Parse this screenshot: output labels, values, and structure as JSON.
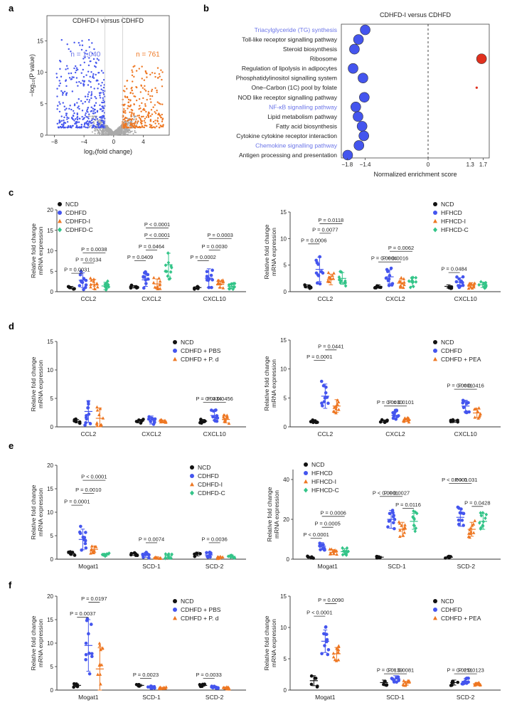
{
  "colors": {
    "ncd": "#111111",
    "blue": "#4455ee",
    "orange": "#ee7722",
    "green": "#33c488",
    "label_blue": "#6a74e8",
    "red": "#e0301e",
    "grey": "#aaaaaa"
  },
  "chart_data": [
    {
      "id": "a",
      "panel": "a",
      "type": "scatter",
      "title": "CDHFD-I versus CDHFD",
      "xlabel": "log₂(fold change)",
      "ylabel": "−log₁₀(P value)",
      "xticks": [
        "−8",
        "−4",
        "0",
        "4"
      ],
      "yticks": [
        "0",
        "5",
        "10",
        "15"
      ],
      "xlim": [
        -9,
        7.5
      ],
      "ylim": [
        0,
        19
      ],
      "annotations": [
        "n = 1,040",
        "n = 761"
      ],
      "series": [
        {
          "color": "blue",
          "count": 1040,
          "description": "down-regulated genes"
        },
        {
          "color": "orange",
          "count": 761,
          "description": "up-regulated genes"
        }
      ]
    },
    {
      "id": "b",
      "panel": "b",
      "type": "scatter",
      "title": "CDHFD-I versus CDHFD",
      "xlabel": "Normalized enrichment score",
      "xticks": [
        "−1.8",
        "−1.4",
        "0",
        "1.3",
        "1.7"
      ],
      "pathways": [
        {
          "name": "Triacylglyceride (TG) synthesis",
          "nes": -1.4,
          "color": "blue",
          "highlight": true
        },
        {
          "name": "Toll-like receptor signalling pathway",
          "nes": -1.55,
          "color": "blue",
          "highlight": false
        },
        {
          "name": "Steroid biosynthesis",
          "nes": -1.64,
          "color": "blue",
          "highlight": false
        },
        {
          "name": "Ribosome",
          "nes": 1.65,
          "color": "red",
          "highlight": false
        },
        {
          "name": "Regulation of lipolysis in adipocytes",
          "nes": -1.67,
          "color": "blue",
          "highlight": false
        },
        {
          "name": "Phosphatidylinositol signalling system",
          "nes": -1.45,
          "color": "blue",
          "highlight": false
        },
        {
          "name": "One–Carbon (1C) pool by folate",
          "nes": 1.5,
          "color": "red",
          "highlight": false
        },
        {
          "name": "NOD like receptor signalling pathway",
          "nes": -1.42,
          "color": "blue",
          "highlight": false
        },
        {
          "name": "NF-κB signalling pathway",
          "nes": -1.61,
          "color": "blue",
          "highlight": true
        },
        {
          "name": "Lipid metabolism pathway",
          "nes": -1.56,
          "color": "blue",
          "highlight": false
        },
        {
          "name": "Fatty acid biosynthesis",
          "nes": -1.47,
          "color": "blue",
          "highlight": false
        },
        {
          "name": "Cytokine cytokine receptor interaction",
          "nes": -1.43,
          "color": "blue",
          "highlight": false
        },
        {
          "name": "Chemokine signalling pathway",
          "nes": -1.54,
          "color": "blue",
          "highlight": true
        },
        {
          "name": "Antigen processing and presentation",
          "nes": -1.79,
          "color": "blue",
          "highlight": false
        }
      ]
    },
    {
      "id": "c1",
      "panel": "c",
      "type": "scatter",
      "ylabel": "Relative fold change\nmRNA expression",
      "ylim": [
        0,
        20
      ],
      "yticks": [
        0,
        5,
        10,
        15,
        20
      ],
      "categories": [
        "CCL2",
        "CXCL2",
        "CXCL10"
      ],
      "legend": [
        {
          "label": "NCD",
          "color": "ncd",
          "marker": "circle"
        },
        {
          "label": "CDHFD",
          "color": "blue",
          "marker": "circle"
        },
        {
          "label": "CDHFD-I",
          "color": "orange",
          "marker": "triangle"
        },
        {
          "label": "CDHFD-C",
          "color": "green",
          "marker": "diamond"
        }
      ],
      "groups": [
        [
          1,
          2.8,
          1.8,
          1.4
        ],
        [
          1.2,
          2.9,
          1.9,
          6.6
        ],
        [
          1,
          3.3,
          1.8,
          1.3
        ]
      ],
      "errors": [
        [
          0.3,
          1.8,
          1.2,
          0.9
        ],
        [
          0.3,
          1.6,
          1.2,
          2.8
        ],
        [
          0.3,
          2.3,
          0.8,
          0.6
        ]
      ],
      "comparisons": [
        {
          "cat": 0,
          "a": 0,
          "b": 1,
          "y": 4.5,
          "p": "P = 0.0031"
        },
        {
          "cat": 0,
          "a": 1,
          "b": 2,
          "y": 7.0,
          "p": "P = 0.0134"
        },
        {
          "cat": 0,
          "a": 1,
          "b": 3,
          "y": 9.5,
          "p": "P = 0.0038"
        },
        {
          "cat": 1,
          "a": 0,
          "b": 1,
          "y": 7.6,
          "p": "P = 0.0409"
        },
        {
          "cat": 1,
          "a": 1,
          "b": 2,
          "y": 10.2,
          "p": "P = 0.0464"
        },
        {
          "cat": 1,
          "a": 1,
          "b": 3,
          "y": 13.0,
          "p": "P < 0.0001"
        },
        {
          "cat": 1,
          "a": 1,
          "b": 3,
          "y": 15.6,
          "p": "P < 0.0001"
        },
        {
          "cat": 2,
          "a": 0,
          "b": 1,
          "y": 7.6,
          "p": "P = 0.0002"
        },
        {
          "cat": 2,
          "a": 1,
          "b": 2,
          "y": 10.2,
          "p": "P = 0.0030"
        },
        {
          "cat": 2,
          "a": 1,
          "b": 3,
          "y": 13.0,
          "p": "P = 0.0003"
        }
      ]
    },
    {
      "id": "c2",
      "panel": "c",
      "type": "scatter",
      "ylabel": "Relative fold change\nmRNA expression",
      "ylim": [
        0,
        15
      ],
      "yticks": [
        0,
        5,
        10,
        15
      ],
      "categories": [
        "CCL2",
        "CXCL2",
        "CXCL10"
      ],
      "legend": [
        {
          "label": "NCD",
          "color": "ncd",
          "marker": "circle"
        },
        {
          "label": "HFHCD",
          "color": "blue",
          "marker": "circle"
        },
        {
          "label": "HFHCD-I",
          "color": "orange",
          "marker": "triangle"
        },
        {
          "label": "HFHCD-C",
          "color": "green",
          "marker": "diamond"
        }
      ],
      "groups": [
        [
          1,
          4.2,
          2.3,
          2.5
        ],
        [
          1,
          2.8,
          1.6,
          1.8
        ],
        [
          1,
          1.8,
          1.2,
          1.3
        ]
      ],
      "errors": [
        [
          0.3,
          2.3,
          1.0,
          1.1
        ],
        [
          0.3,
          1.3,
          0.8,
          0.8
        ],
        [
          0.3,
          0.8,
          0.5,
          0.5
        ]
      ],
      "comparisons": [
        {
          "cat": 0,
          "a": 0,
          "b": 1,
          "y": 9.0,
          "p": "P = 0.0006"
        },
        {
          "cat": 0,
          "a": 1,
          "b": 2,
          "y": 11.0,
          "p": "P = 0.0077"
        },
        {
          "cat": 0,
          "a": 1,
          "b": 3,
          "y": 12.8,
          "p": "P = 0.0118"
        },
        {
          "cat": 1,
          "a": 0,
          "b": 1,
          "y": 5.6,
          "p": "P = 0.0004"
        },
        {
          "cat": 1,
          "a": 1,
          "b": 2,
          "y": 5.6,
          "p": "P = 0.0016"
        },
        {
          "cat": 1,
          "a": 1,
          "b": 3,
          "y": 7.6,
          "p": "P = 0.0062"
        },
        {
          "cat": 2,
          "a": 0,
          "b": 1,
          "y": 3.6,
          "p": "P = 0.0484"
        }
      ]
    },
    {
      "id": "d1",
      "panel": "d",
      "type": "scatter",
      "ylabel": "Relative fold change\nmRNA expression",
      "ylim": [
        0,
        15
      ],
      "yticks": [
        0,
        5,
        10,
        15
      ],
      "categories": [
        "CCL2",
        "CXCL2",
        "CXCL10"
      ],
      "legend": [
        {
          "label": "NCD",
          "color": "ncd",
          "marker": "circle"
        },
        {
          "label": "CDHFD + PBS",
          "color": "blue",
          "marker": "circle"
        },
        {
          "label": "CDHFD + P. d",
          "color": "orange",
          "marker": "triangle"
        }
      ],
      "groups": [
        [
          1,
          2.7,
          1.5
        ],
        [
          1,
          1.2,
          1.0
        ],
        [
          1,
          2.0,
          1.3
        ]
      ],
      "errors": [
        [
          0.3,
          1.9,
          1.8
        ],
        [
          0.3,
          0.7,
          0.2
        ],
        [
          0.3,
          0.8,
          0.6
        ]
      ],
      "comparisons": [
        {
          "cat": 2,
          "a": 0,
          "b": 1,
          "y": 4.3,
          "p": "P = 0.0334"
        },
        {
          "cat": 2,
          "a": 1,
          "b": 2,
          "y": 4.3,
          "p": "P = 0.0456"
        }
      ]
    },
    {
      "id": "d2",
      "panel": "d",
      "type": "scatter",
      "ylabel": "Relative fold change\nmRNA expression",
      "ylim": [
        0,
        15
      ],
      "yticks": [
        0,
        5,
        10,
        15
      ],
      "categories": [
        "CCL2",
        "CXCL2",
        "CXCL10"
      ],
      "legend": [
        {
          "label": "NCD",
          "color": "ncd",
          "marker": "circle"
        },
        {
          "label": "CDHFD",
          "color": "blue",
          "marker": "circle"
        },
        {
          "label": "CDHFD + PEA",
          "color": "orange",
          "marker": "triangle"
        }
      ],
      "groups": [
        [
          1,
          5.3,
          3.6
        ],
        [
          1,
          2.0,
          1.2
        ],
        [
          1,
          3.6,
          2.4
        ]
      ],
      "errors": [
        [
          0.2,
          2.1,
          1.1
        ],
        [
          0.2,
          0.7,
          0.3
        ],
        [
          0.2,
          1.0,
          0.8
        ]
      ],
      "comparisons": [
        {
          "cat": 0,
          "a": 0,
          "b": 1,
          "y": 11.5,
          "p": "P = 0.0001"
        },
        {
          "cat": 0,
          "a": 1,
          "b": 2,
          "y": 13.3,
          "p": "P = 0.0441"
        },
        {
          "cat": 1,
          "a": 0,
          "b": 1,
          "y": 3.6,
          "p": "P = 0.0030"
        },
        {
          "cat": 1,
          "a": 1,
          "b": 2,
          "y": 3.6,
          "p": "P = 0.0101"
        },
        {
          "cat": 2,
          "a": 0,
          "b": 1,
          "y": 6.5,
          "p": "P = 0.0001"
        },
        {
          "cat": 2,
          "a": 1,
          "b": 2,
          "y": 6.5,
          "p": "P = 0.0416"
        }
      ]
    },
    {
      "id": "e1",
      "panel": "e",
      "type": "scatter",
      "ylabel": "Relative fold change\nmRNA expression",
      "ylim": [
        0,
        20
      ],
      "yticks": [
        0,
        5,
        10,
        15,
        20
      ],
      "categories": [
        "Mogat1",
        "SCD-1",
        "SCD-2"
      ],
      "legend": [
        {
          "label": "NCD",
          "color": "ncd",
          "marker": "circle"
        },
        {
          "label": "CDHFD",
          "color": "blue",
          "marker": "circle"
        },
        {
          "label": "CDHFD-I",
          "color": "orange",
          "marker": "triangle"
        },
        {
          "label": "CDHFD-C",
          "color": "green",
          "marker": "diamond"
        }
      ],
      "groups": [
        [
          1.2,
          4.2,
          2.1,
          0.9
        ],
        [
          1.1,
          0.9,
          0.3,
          0.7
        ],
        [
          1.1,
          0.9,
          0.3,
          0.6
        ]
      ],
      "errors": [
        [
          0.3,
          2.2,
          0.7,
          0.3
        ],
        [
          0.3,
          0.5,
          0.2,
          0.4
        ],
        [
          0.4,
          0.5,
          0.2,
          0.3
        ]
      ],
      "comparisons": [
        {
          "cat": 0,
          "a": 0,
          "b": 1,
          "y": 11.5,
          "p": "P = 0.0001"
        },
        {
          "cat": 0,
          "a": 1,
          "b": 2,
          "y": 14.0,
          "p": "P = 0.0010"
        },
        {
          "cat": 0,
          "a": 1,
          "b": 3,
          "y": 16.8,
          "p": "P < 0.0001"
        },
        {
          "cat": 1,
          "a": 1,
          "b": 2,
          "y": 3.5,
          "p": "P = 0.0074"
        },
        {
          "cat": 2,
          "a": 1,
          "b": 2,
          "y": 3.5,
          "p": "P = 0.0036"
        }
      ]
    },
    {
      "id": "e2",
      "panel": "e",
      "type": "scatter",
      "ylabel": "Relative fold change\nmRNA expression",
      "ylim": [
        0,
        45
      ],
      "yticks": [
        0,
        20,
        40
      ],
      "categories": [
        "Mogat1",
        "SCD-1",
        "SCD-2"
      ],
      "legend": [
        {
          "label": "NCD",
          "color": "ncd",
          "marker": "circle"
        },
        {
          "label": "HFHCD",
          "color": "blue",
          "marker": "circle"
        },
        {
          "label": "HFHCD-I",
          "color": "orange",
          "marker": "triangle"
        },
        {
          "label": "HFHCD-C",
          "color": "green",
          "marker": "diamond"
        }
      ],
      "groups": [
        [
          1,
          6.5,
          3.5,
          3.8
        ],
        [
          1,
          20,
          15,
          19
        ],
        [
          1,
          21,
          15,
          19
        ]
      ],
      "errors": [
        [
          0.4,
          1.8,
          1.3,
          1.5
        ],
        [
          0.4,
          4.5,
          3.5,
          4.0
        ],
        [
          0.4,
          4.5,
          3.5,
          4.0
        ]
      ],
      "comparisons": [
        {
          "cat": 0,
          "a": 0,
          "b": 1,
          "y": 10.5,
          "p": "P < 0.0001"
        },
        {
          "cat": 0,
          "a": 1,
          "b": 2,
          "y": 16.0,
          "p": "P = 0.0005"
        },
        {
          "cat": 0,
          "a": 1,
          "b": 3,
          "y": 21.5,
          "p": "P = 0.0006"
        },
        {
          "cat": 1,
          "a": 0,
          "b": 1,
          "y": 31.5,
          "p": "P < 0.0001"
        },
        {
          "cat": 1,
          "a": 1,
          "b": 2,
          "y": 31.5,
          "p": "P = 0.0027"
        },
        {
          "cat": 1,
          "a": 2,
          "b": 3,
          "y": 25.5,
          "p": "P = 0.0116"
        },
        {
          "cat": 2,
          "a": 0,
          "b": 1,
          "y": 38.0,
          "p": "P < 0.0001"
        },
        {
          "cat": 2,
          "a": 1,
          "b": 2,
          "y": 38.0,
          "p": "P = 0.031"
        },
        {
          "cat": 2,
          "a": 2,
          "b": 3,
          "y": 26.5,
          "p": "P = 0.0428"
        }
      ]
    },
    {
      "id": "f1",
      "panel": "f",
      "type": "scatter",
      "ylabel": "Relative fold change\nmRNA expression",
      "ylim": [
        0,
        20
      ],
      "yticks": [
        0,
        5,
        10,
        15,
        20
      ],
      "categories": [
        "Mogat1",
        "SCD-1",
        "SCD-2"
      ],
      "legend": [
        {
          "label": "NCD",
          "color": "ncd",
          "marker": "circle"
        },
        {
          "label": "CDHFD + PBS",
          "color": "blue",
          "marker": "circle"
        },
        {
          "label": "CDHFD + P. d",
          "color": "orange",
          "marker": "triangle"
        }
      ],
      "groups": [
        [
          1,
          9.5,
          4.5
        ],
        [
          1,
          0.6,
          0.4
        ],
        [
          1,
          0.6,
          0.4
        ]
      ],
      "errors": [
        [
          0.3,
          5.5,
          4.5
        ],
        [
          0.2,
          0.2,
          0.2
        ],
        [
          0.2,
          0.2,
          0.2
        ]
      ],
      "comparisons": [
        {
          "cat": 0,
          "a": 0,
          "b": 1,
          "y": 15.5,
          "p": "P = 0.0037"
        },
        {
          "cat": 0,
          "a": 1,
          "b": 2,
          "y": 18.7,
          "p": "P = 0.0197"
        },
        {
          "cat": 1,
          "a": 0,
          "b": 1,
          "y": 2.5,
          "p": "P = 0.0023"
        },
        {
          "cat": 2,
          "a": 0,
          "b": 1,
          "y": 2.5,
          "p": "P = 0.0033"
        }
      ]
    },
    {
      "id": "f2",
      "panel": "f",
      "type": "scatter",
      "ylabel": "Relative fold change\nmRNA expression",
      "ylim": [
        0,
        15
      ],
      "yticks": [
        0,
        5,
        10,
        15
      ],
      "categories": [
        "Mogat1",
        "SCD-1",
        "SCD-2"
      ],
      "legend": [
        {
          "label": "NCD",
          "color": "ncd",
          "marker": "circle"
        },
        {
          "label": "CDHFD",
          "color": "blue",
          "marker": "circle"
        },
        {
          "label": "CDHFD + PEA",
          "color": "orange",
          "marker": "triangle"
        }
      ],
      "groups": [
        [
          1.5,
          7.8,
          5.8
        ],
        [
          1.2,
          1.8,
          1.1
        ],
        [
          1.2,
          1.4,
          1.0
        ]
      ],
      "errors": [
        [
          0.8,
          1.8,
          1.0
        ],
        [
          0.4,
          0.5,
          0.3
        ],
        [
          0.4,
          0.4,
          0.2
        ]
      ],
      "comparisons": [
        {
          "cat": 0,
          "a": 0,
          "b": 1,
          "y": 11.8,
          "p": "P < 0.0001"
        },
        {
          "cat": 0,
          "a": 1,
          "b": 2,
          "y": 13.8,
          "p": "P = 0.0090"
        },
        {
          "cat": 1,
          "a": 0,
          "b": 1,
          "y": 2.6,
          "p": "P = 0.0139"
        },
        {
          "cat": 1,
          "a": 1,
          "b": 2,
          "y": 2.6,
          "p": "P = 0.0081"
        },
        {
          "cat": 2,
          "a": 0,
          "b": 1,
          "y": 2.6,
          "p": "P = 0.0251"
        },
        {
          "cat": 2,
          "a": 1,
          "b": 2,
          "y": 2.6,
          "p": "P = 0.0123"
        }
      ]
    }
  ]
}
